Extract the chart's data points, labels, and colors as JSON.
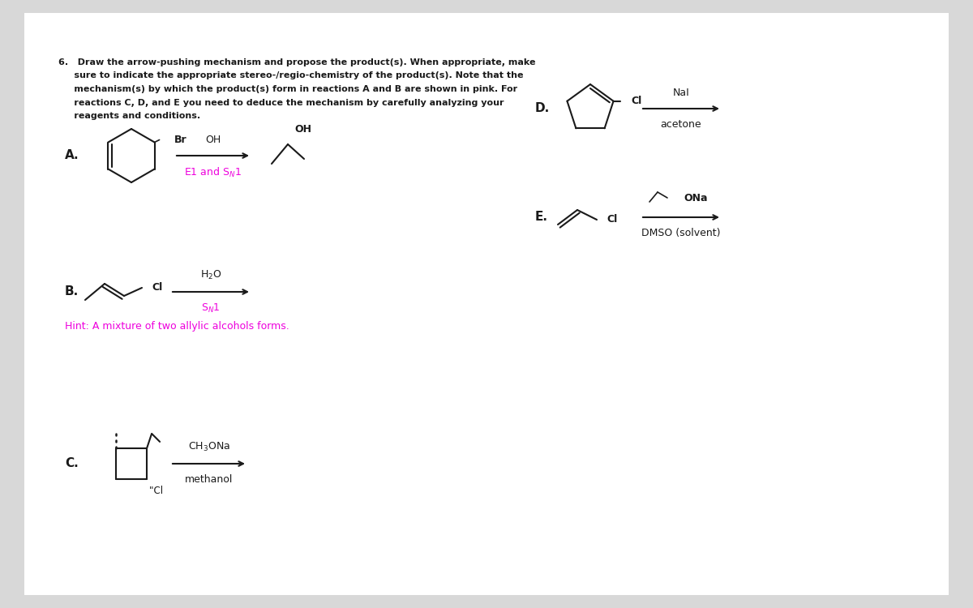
{
  "bg_color": "#d8d8d8",
  "page_color": "#ffffff",
  "black": "#1a1a1a",
  "pink": "#ee00dd",
  "q_lines": [
    "6.   Draw the arrow-pushing mechanism and propose the product(s). When appropriate, make",
    "     sure to indicate the appropriate stereo-/regio-chemistry of the product(s). Note that the",
    "     mechanism(s) by which the product(s) form in reactions A and B are shown in pink. For",
    "     reactions C, D, and E you need to deduce the mechanism by carefully analyzing your",
    "     reagents and conditions."
  ],
  "rxnA_above": "OH",
  "rxnA_below": "E1 and S$_N$1",
  "rxnB_above": "H$_2$O",
  "rxnB_below": "S$_N$1",
  "rxnB_hint": "Hint: A mixture of two allylic alcohols forms.",
  "rxnC_above": "CH$_3$ONa",
  "rxnC_below": "methanol",
  "rxnD_above": "NaI",
  "rxnD_below": "acetone",
  "rxnE_above": "ONa",
  "rxnE_below": "DMSO (solvent)"
}
